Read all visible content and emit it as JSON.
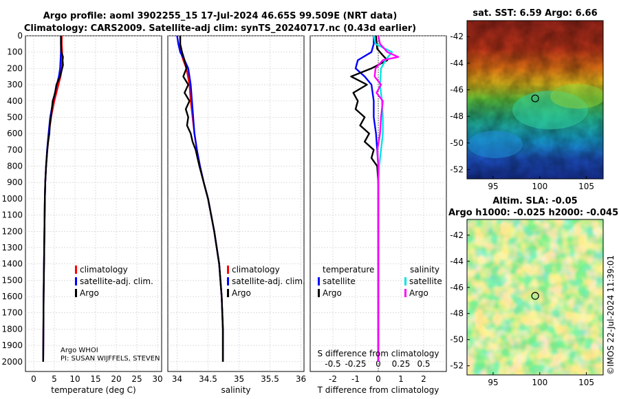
{
  "header": {
    "title_line1": "Argo profile: aoml 3902255_15 17-Jul-2024 46.65S 99.509E (NRT data)",
    "title_line2": "Climatology: CARS2009. Satellite-adj clim: synTS_20240717.nc (0.43d earlier)"
  },
  "credit": "©IMOS 22-Jul-2024 11:39:01",
  "chart_data": [
    {
      "type": "line",
      "name": "temperature-profile",
      "xlabel": "temperature (deg C)",
      "ylabel": "",
      "xlim": [
        -2,
        31
      ],
      "ylim": [
        2060,
        0
      ],
      "xticks": [
        0,
        5,
        10,
        15,
        20,
        25,
        30
      ],
      "yticks": [
        0,
        100,
        200,
        300,
        400,
        500,
        600,
        700,
        800,
        900,
        1000,
        1100,
        1200,
        1300,
        1400,
        1500,
        1600,
        1700,
        1800,
        1900,
        2000
      ],
      "legend": [
        "climatology",
        "satellite-adj. clim.",
        "Argo"
      ],
      "annotation": [
        "Argo WHOI",
        "PI: SUSAN WIJFFELS, STEVEN"
      ],
      "series": [
        {
          "name": "climatology",
          "color": "#ff0000",
          "depth": [
            0,
            50,
            100,
            150,
            200,
            250,
            300,
            400,
            500,
            600,
            700,
            800,
            900,
            1000,
            1200,
            1400,
            1600,
            1800,
            2000
          ],
          "values": [
            6.8,
            6.8,
            6.9,
            6.9,
            6.8,
            6.5,
            6.0,
            5.0,
            4.2,
            3.7,
            3.3,
            3.0,
            2.8,
            2.7,
            2.6,
            2.5,
            2.4,
            2.35,
            2.3
          ]
        },
        {
          "name": "satellite-adj. clim.",
          "color": "#0000ff",
          "depth": [
            0,
            50,
            100,
            150,
            200,
            250,
            300,
            400,
            500,
            600,
            700,
            800,
            900,
            1000,
            1200,
            1400,
            1600,
            1800,
            2000
          ],
          "values": [
            6.6,
            6.6,
            6.6,
            6.5,
            6.4,
            6.1,
            5.6,
            4.7,
            4.0,
            3.6,
            3.25,
            3.0,
            2.8,
            2.7,
            2.6,
            2.5,
            2.4,
            2.35,
            2.3
          ]
        },
        {
          "name": "Argo",
          "color": "#000000",
          "depth": [
            0,
            50,
            100,
            130,
            150,
            180,
            200,
            250,
            300,
            350,
            400,
            450,
            500,
            550,
            600,
            650,
            700,
            800,
            900,
            1000,
            1200,
            1400,
            1600,
            1800,
            2000
          ],
          "values": [
            6.6,
            6.6,
            6.7,
            7.1,
            7.0,
            7.1,
            6.9,
            6.4,
            5.5,
            5.2,
            4.6,
            4.4,
            4.2,
            3.9,
            3.8,
            3.5,
            3.3,
            3.0,
            2.8,
            2.7,
            2.6,
            2.5,
            2.4,
            2.35,
            2.3
          ]
        }
      ]
    },
    {
      "type": "line",
      "name": "salinity-profile",
      "xlabel": "salinity",
      "ylabel": "",
      "xlim": [
        33.85,
        36.05
      ],
      "ylim": [
        2060,
        0
      ],
      "xticks": [
        34,
        34.5,
        35,
        35.5,
        36
      ],
      "legend": [
        "climatology",
        "satellite-adj. clim.",
        "Argo"
      ],
      "series": [
        {
          "name": "climatology",
          "color": "#ff0000",
          "depth": [
            0,
            50,
            100,
            150,
            200,
            300,
            400,
            500,
            600,
            700,
            800,
            900,
            1000,
            1200,
            1400,
            1600,
            1800,
            2000
          ],
          "values": [
            34.05,
            34.05,
            34.06,
            34.1,
            34.15,
            34.2,
            34.22,
            34.25,
            34.28,
            34.32,
            34.37,
            34.43,
            34.5,
            34.6,
            34.68,
            34.72,
            34.74,
            34.74
          ]
        },
        {
          "name": "satellite-adj. clim.",
          "color": "#0000ff",
          "depth": [
            0,
            50,
            100,
            150,
            200,
            300,
            400,
            500,
            600,
            700,
            800,
            900,
            1000,
            1200,
            1400,
            1600,
            1800,
            2000
          ],
          "values": [
            34.0,
            34.02,
            34.05,
            34.12,
            34.18,
            34.22,
            34.24,
            34.26,
            34.28,
            34.32,
            34.37,
            34.43,
            34.5,
            34.6,
            34.68,
            34.72,
            34.74,
            34.74
          ]
        },
        {
          "name": "Argo",
          "color": "#000000",
          "depth": [
            0,
            50,
            100,
            150,
            200,
            250,
            300,
            350,
            400,
            450,
            500,
            550,
            600,
            650,
            700,
            750,
            800,
            900,
            1000,
            1200,
            1400,
            1600,
            1800,
            2000
          ],
          "values": [
            34.05,
            34.05,
            34.08,
            34.12,
            34.15,
            34.1,
            34.18,
            34.12,
            34.2,
            34.14,
            34.18,
            34.16,
            34.22,
            34.25,
            34.3,
            34.33,
            34.36,
            34.43,
            34.5,
            34.6,
            34.68,
            34.72,
            34.74,
            34.74
          ]
        }
      ]
    },
    {
      "type": "line",
      "name": "difference-profile",
      "xlabel": "T difference from climatology",
      "xlabel2": "S difference from climatology",
      "ylabel": "",
      "xlim": [
        -3,
        3
      ],
      "ylim": [
        2060,
        0
      ],
      "xticks": [
        -2,
        -1,
        0,
        1,
        2
      ],
      "xticks2": [
        -0.5,
        -0.25,
        0,
        0.25,
        0.5
      ],
      "xticklabels2": [
        "-0.5",
        "-0.25",
        "0",
        "0.25",
        "0.5"
      ],
      "legend_title_t": "temperature",
      "legend_title_s": "salinity",
      "legend_t": [
        "satellite",
        "Argo"
      ],
      "legend_s": [
        "satellite",
        "Argo"
      ],
      "series": [
        {
          "name": "T satellite",
          "color": "#0000ff",
          "depth": [
            0,
            50,
            100,
            150,
            200,
            250,
            300,
            400,
            500,
            600,
            700,
            800,
            1000,
            1500,
            2000
          ],
          "values": [
            -0.2,
            -0.2,
            -0.3,
            -0.9,
            -1.0,
            -0.6,
            -0.3,
            -0.2,
            -0.2,
            -0.1,
            -0.05,
            0,
            0,
            0,
            0
          ]
        },
        {
          "name": "T Argo",
          "color": "#000000",
          "depth": [
            0,
            80,
            120,
            150,
            200,
            250,
            300,
            350,
            400,
            450,
            500,
            550,
            600,
            650,
            700,
            750,
            800,
            900,
            1000,
            1500,
            2000
          ],
          "values": [
            -0.1,
            -0.05,
            0.2,
            0.4,
            -0.3,
            -1.2,
            -0.5,
            -1.1,
            -0.9,
            -1.0,
            -0.6,
            -0.8,
            -0.4,
            -0.6,
            -0.2,
            -0.3,
            -0.05,
            0,
            0,
            0,
            0
          ]
        },
        {
          "name": "S satellite",
          "color": "#00e5e5",
          "depth": [
            0,
            50,
            100,
            150,
            200,
            300,
            400,
            500,
            600,
            700,
            800,
            900,
            1000,
            1500,
            2000
          ],
          "values": [
            -0.05,
            -0.03,
            0.15,
            0.08,
            0.03,
            0.02,
            0.04,
            0.05,
            0.05,
            0.03,
            0.01,
            0,
            0,
            0,
            0
          ]
        },
        {
          "name": "S Argo",
          "color": "#ff00ff",
          "depth": [
            0,
            50,
            100,
            130,
            150,
            200,
            250,
            300,
            350,
            400,
            500,
            600,
            700,
            800,
            900,
            1000,
            1500,
            2000
          ],
          "values": [
            0.0,
            0.02,
            0.1,
            0.22,
            0.05,
            -0.03,
            -0.04,
            0.03,
            -0.02,
            0.05,
            0.03,
            0.02,
            -0.01,
            0,
            0,
            0,
            0,
            0
          ]
        }
      ]
    },
    {
      "type": "heatmap",
      "name": "sst-map",
      "title": "sat. SST: 6.59 Argo: 6.66",
      "xticks": [
        95,
        100,
        105
      ],
      "yticks": [
        -42,
        -44,
        -46,
        -48,
        -50,
        -52
      ],
      "xlim": [
        92.2,
        106.8
      ],
      "ylim": [
        -52.7,
        -40.8
      ],
      "marker": {
        "lon": 99.51,
        "lat": -46.65
      },
      "description": "warm water north, cold south"
    },
    {
      "type": "heatmap",
      "name": "sla-map",
      "title": "Altim. SLA: -0.05",
      "subtitle": "Argo h1000: -0.025 h2000: -0.045",
      "xticks": [
        95,
        100,
        105
      ],
      "yticks": [
        -42,
        -44,
        -46,
        -48,
        -50,
        -52
      ],
      "xlim": [
        92.2,
        106.8
      ],
      "ylim": [
        -52.7,
        -40.8
      ],
      "marker": {
        "lon": 99.51,
        "lat": -46.65
      }
    }
  ]
}
